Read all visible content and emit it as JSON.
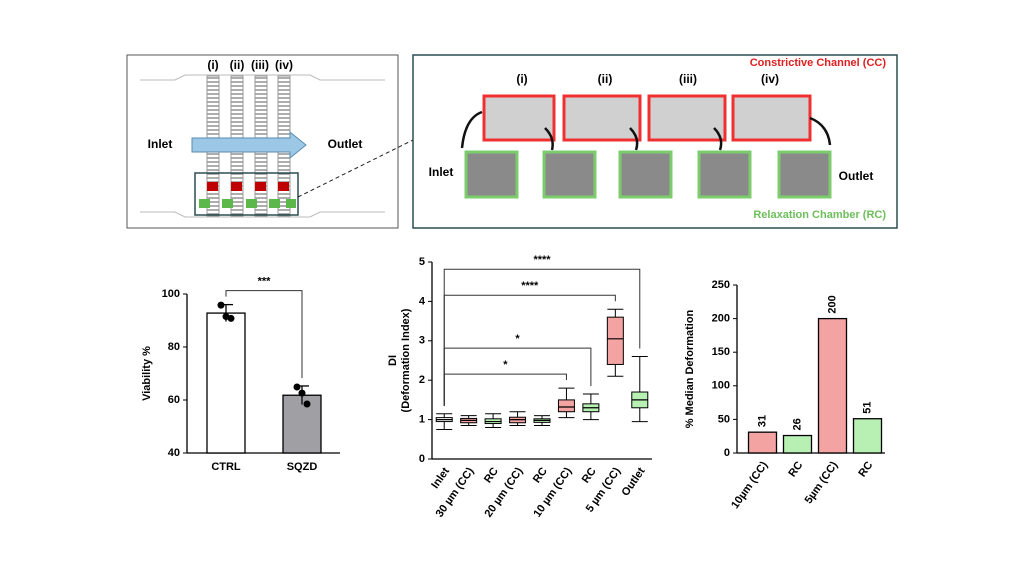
{
  "diagram_a": {
    "stages": [
      "(i)",
      "(ii)",
      "(iii)",
      "(iv)"
    ],
    "inlet": "Inlet",
    "outlet": "Outlet"
  },
  "diagram_b": {
    "title": "Constrictive Channel (CC)",
    "stages": [
      "(i)",
      "(ii)",
      "(iii)",
      "(iv)"
    ],
    "inlet": "Inlet",
    "outlet": "Outlet",
    "footer": "Relaxation Chamber (RC)"
  },
  "chart_data": [
    {
      "type": "bar",
      "ylabel": "Viability %",
      "categories": [
        "CTRL",
        "SQZD"
      ],
      "values": [
        92.8,
        61.8
      ],
      "errors": [
        3.2,
        3.5
      ],
      "points": [
        [
          95.8,
          91.5,
          90.8
        ],
        [
          64.9,
          62.6,
          58.5
        ]
      ],
      "color": [
        "#ffffff",
        "#a0a0a4"
      ],
      "ylim": [
        40,
        100
      ],
      "yticks": [
        40,
        60,
        80,
        100
      ],
      "annotations": [
        {
          "text": "***",
          "from": 0,
          "to": 1
        }
      ]
    },
    {
      "type": "box",
      "ylabel": [
        "DI",
        "(Deformation Index)"
      ],
      "categories": [
        "Inlet",
        "30 µm (CC)",
        "RC",
        "20 µm (CC)",
        "RC",
        "10 µm (CC)",
        "RC",
        "5 µm (CC)",
        "Outlet"
      ],
      "color": [
        "#ffffff",
        "#f4a3a3",
        "#b8f0b4",
        "#f4a3a3",
        "#b8f0b4",
        "#f4a3a3",
        "#b8f0b4",
        "#f4a3a3",
        "#b8f0b4"
      ],
      "boxes": [
        {
          "low": 0.75,
          "q1": 0.95,
          "median": 1.0,
          "q3": 1.05,
          "high": 1.15
        },
        {
          "low": 0.85,
          "q1": 0.92,
          "median": 0.98,
          "q3": 1.03,
          "high": 1.1
        },
        {
          "low": 0.8,
          "q1": 0.9,
          "median": 0.95,
          "q3": 1.02,
          "high": 1.15
        },
        {
          "low": 0.85,
          "q1": 0.92,
          "median": 1.0,
          "q3": 1.06,
          "high": 1.2
        },
        {
          "low": 0.85,
          "q1": 0.93,
          "median": 0.98,
          "q3": 1.02,
          "high": 1.1
        },
        {
          "low": 1.05,
          "q1": 1.2,
          "median": 1.32,
          "q3": 1.5,
          "high": 1.8
        },
        {
          "low": 1.0,
          "q1": 1.2,
          "median": 1.3,
          "q3": 1.4,
          "high": 1.65
        },
        {
          "low": 2.1,
          "q1": 2.4,
          "median": 3.05,
          "q3": 3.6,
          "high": 3.8
        },
        {
          "low": 0.95,
          "q1": 1.3,
          "median": 1.5,
          "q3": 1.7,
          "high": 2.6
        }
      ],
      "ylim": [
        0,
        5
      ],
      "yticks": [
        0,
        1,
        2,
        3,
        4,
        5
      ],
      "annotations": [
        {
          "text": "*",
          "from": 0,
          "to": 5
        },
        {
          "text": "*",
          "from": 0,
          "to": 6
        },
        {
          "text": "****",
          "from": 0,
          "to": 7
        },
        {
          "text": "****",
          "from": 0,
          "to": 8
        }
      ]
    },
    {
      "type": "bar",
      "ylabel": "% Median Deformation",
      "categories": [
        "10µm (CC)",
        "RC",
        "5µm (CC)",
        "RC"
      ],
      "values": [
        31,
        26,
        200,
        51
      ],
      "color": [
        "#f4a3a3",
        "#b8f0b4",
        "#f4a3a3",
        "#b8f0b4"
      ],
      "ylim": [
        0,
        250
      ],
      "yticks": [
        0,
        50,
        100,
        150,
        200,
        250
      ],
      "value_labels_shown": true
    }
  ]
}
